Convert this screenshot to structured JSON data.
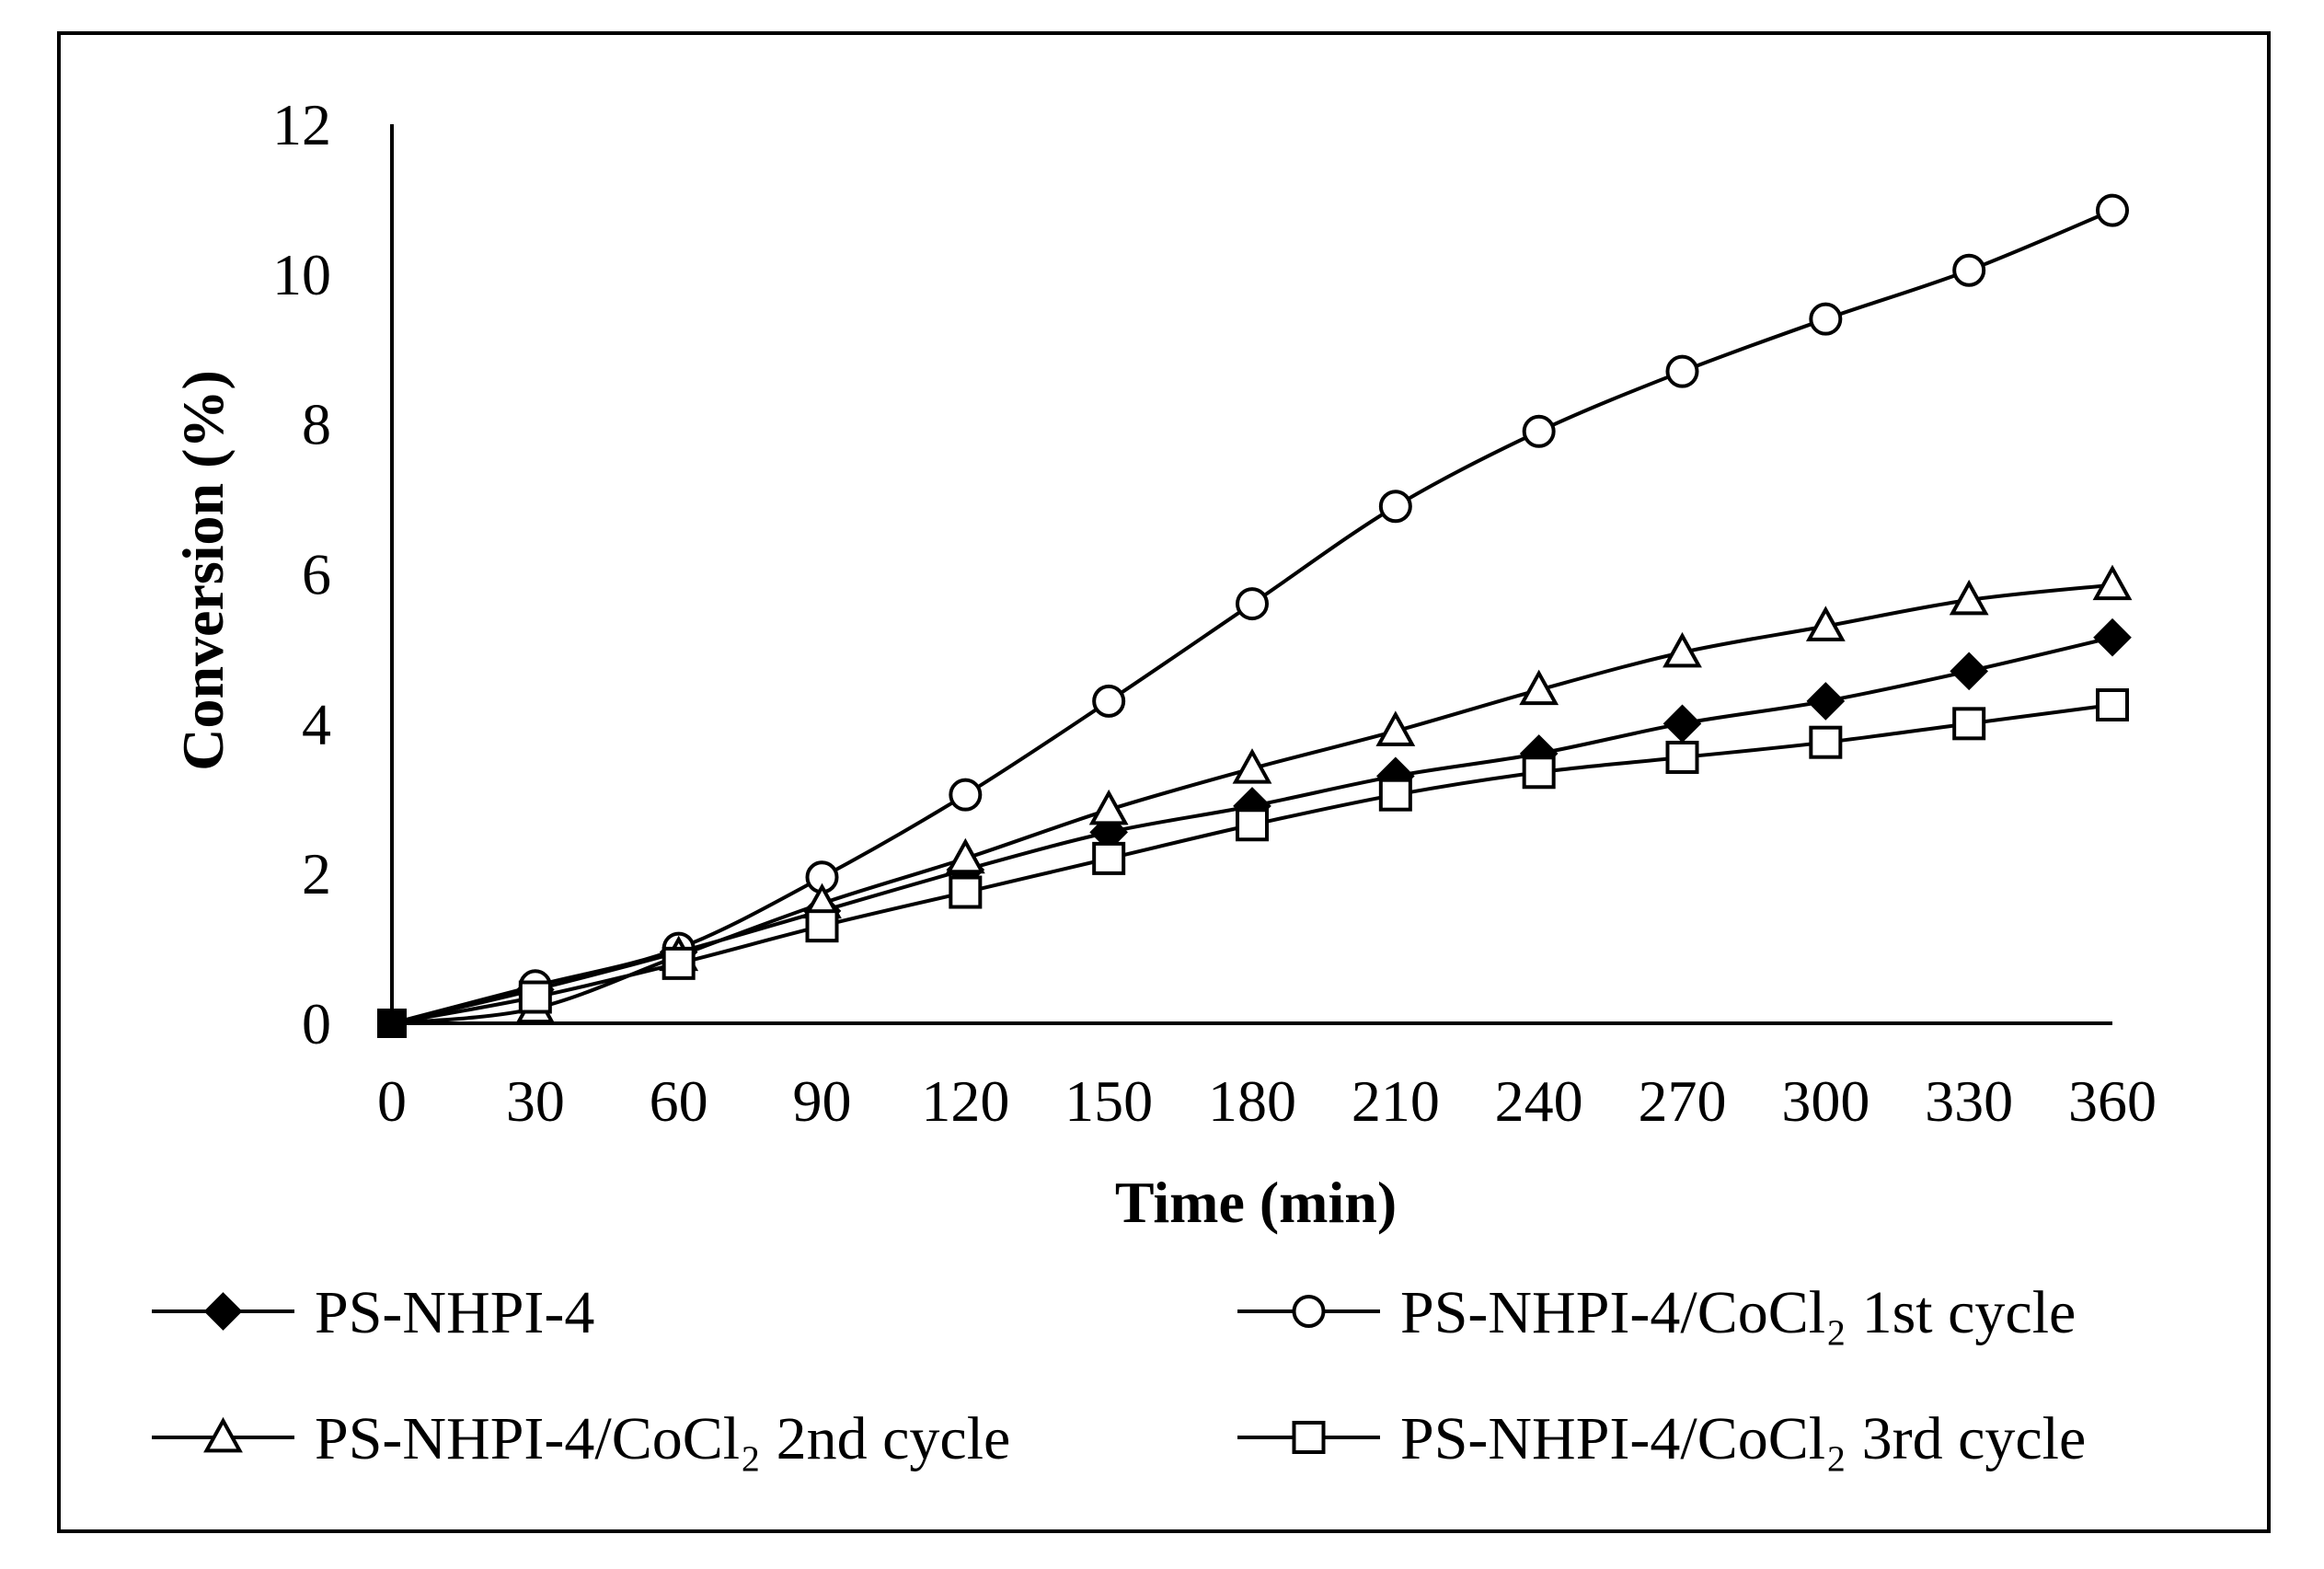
{
  "chart_data": {
    "type": "line",
    "title": "",
    "xlabel": "Time (min)",
    "ylabel": "Conversion (%)",
    "x": [
      0,
      30,
      60,
      90,
      120,
      150,
      180,
      210,
      240,
      270,
      300,
      330,
      360
    ],
    "xticks": [
      "0",
      "30",
      "60",
      "90",
      "120",
      "150",
      "180",
      "210",
      "240",
      "270",
      "300",
      "330",
      "360"
    ],
    "yticks": [
      "0",
      "2",
      "4",
      "6",
      "8",
      "10",
      "12"
    ],
    "xlim": [
      0,
      360
    ],
    "ylim": [
      0,
      12
    ],
    "grid": false,
    "legend_position": "bottom",
    "series": [
      {
        "name": "PS-NHPI-4",
        "marker": "diamond-filled",
        "values": [
          0,
          0.45,
          0.95,
          1.5,
          2.05,
          2.55,
          2.9,
          3.3,
          3.6,
          4.0,
          4.3,
          4.7,
          5.15
        ]
      },
      {
        "name": "PS-NHPI-4/CoCl₂ 1st cycle",
        "marker": "circle-open",
        "values": [
          0,
          0.5,
          1.0,
          1.95,
          3.05,
          4.3,
          5.6,
          6.9,
          7.9,
          8.7,
          9.4,
          10.05,
          10.85
        ]
      },
      {
        "name": "PS-NHPI-4/CoCl₂ 2nd cycle",
        "marker": "triangle-open",
        "values": [
          0,
          0.2,
          0.9,
          1.6,
          2.2,
          2.85,
          3.4,
          3.9,
          4.45,
          4.95,
          5.3,
          5.65,
          5.85
        ]
      },
      {
        "name": "PS-NHPI-4/CoCl₂ 3rd cycle",
        "marker": "square-open",
        "values": [
          0,
          0.35,
          0.8,
          1.3,
          1.75,
          2.2,
          2.65,
          3.05,
          3.35,
          3.55,
          3.75,
          4.0,
          4.25
        ]
      }
    ]
  }
}
